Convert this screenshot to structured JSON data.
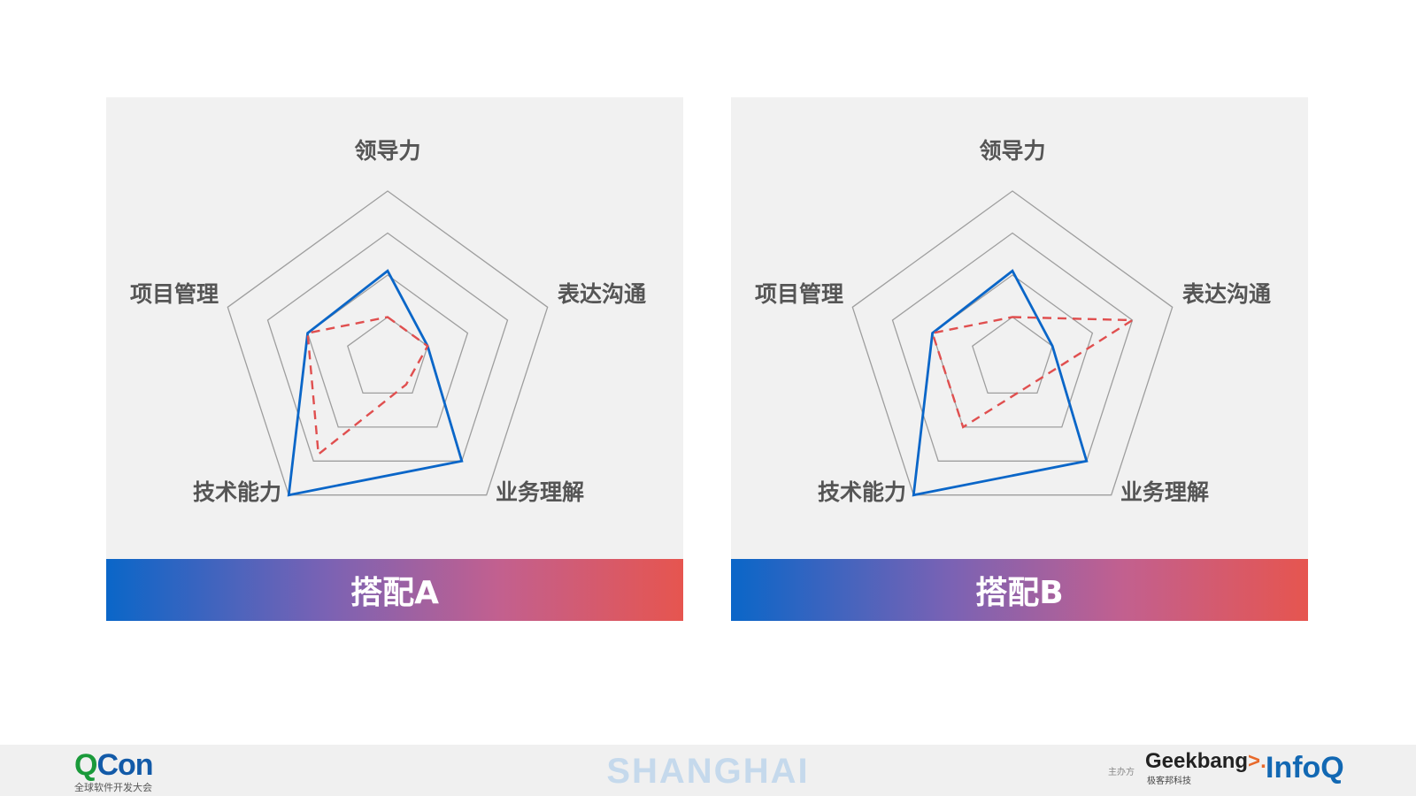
{
  "axes": [
    "领导力",
    "表达沟通",
    "业务理解",
    "技术能力",
    "项目管理"
  ],
  "styles": {
    "grid_color": "#9e9e9e",
    "solid_color": "#0a66c8",
    "dashed_color": "#e04f4f"
  },
  "chart_data": [
    {
      "type": "radar",
      "title": "搭配A",
      "axes": [
        "领导力",
        "表达沟通",
        "业务理解",
        "技术能力",
        "项目管理"
      ],
      "range": [
        0,
        4
      ],
      "grid_levels": [
        1,
        2,
        3,
        4
      ],
      "series": [
        {
          "style": "solid",
          "values": [
            2.1,
            1.0,
            3.0,
            4.0,
            2.0
          ]
        },
        {
          "style": "dashed",
          "values": [
            1.0,
            1.0,
            0.75,
            2.8,
            2.0
          ]
        }
      ]
    },
    {
      "type": "radar",
      "title": "搭配B",
      "axes": [
        "领导力",
        "表达沟通",
        "业务理解",
        "技术能力",
        "项目管理"
      ],
      "range": [
        0,
        4
      ],
      "grid_levels": [
        1,
        2,
        3,
        4
      ],
      "series": [
        {
          "style": "solid",
          "values": [
            2.1,
            1.0,
            3.0,
            4.0,
            2.0
          ]
        },
        {
          "style": "dashed",
          "values": [
            1.0,
            3.0,
            0.75,
            2.0,
            2.0
          ]
        }
      ]
    }
  ],
  "footer": {
    "qcon_q": "Q",
    "qcon_con": "Con",
    "qcon_subtitle": "全球软件开发大会",
    "city": "SHANGHAI",
    "sponsor_label": "主办方",
    "geekbang_text": "Geekbang",
    "geekbang_arrow": ">.",
    "geekbang_subtitle": "极客邦科技",
    "infoq": "InfoQ"
  }
}
